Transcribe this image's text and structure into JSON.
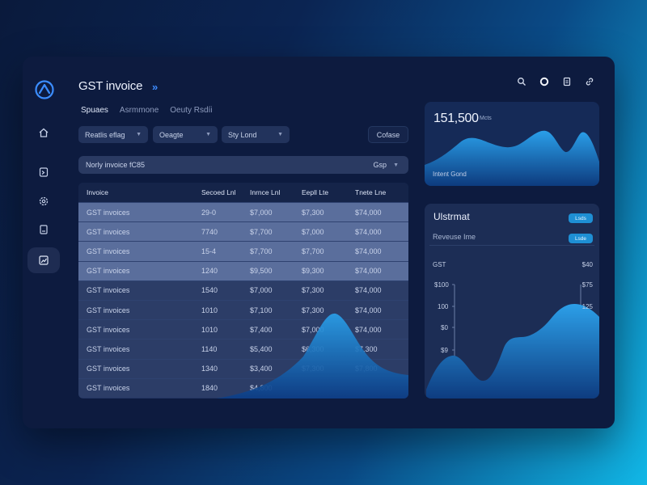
{
  "app": {
    "title": "GST invoice",
    "title_arrows": "»"
  },
  "tabs": [
    {
      "label": "Spuaes",
      "active": true
    },
    {
      "label": "Asrmmone",
      "active": false
    },
    {
      "label": "Oeuty Rsdíi",
      "active": false
    }
  ],
  "filters": [
    {
      "label": "Reatlis eflag"
    },
    {
      "label": "Oeagte"
    },
    {
      "label": "Sty Lond"
    }
  ],
  "create_button": "Cofase",
  "search": {
    "text": "Norly invoice fC85",
    "select_label": "Gsp"
  },
  "table": {
    "columns": [
      "Invoice",
      "Secoed Lnl",
      "Inrnce Lnl",
      "Eepll Lte",
      "Tnete Lne"
    ],
    "rows": [
      [
        "GST invoices",
        "29-0",
        "$7,000",
        "$7,300",
        "$74,000"
      ],
      [
        "GST invoices",
        "7740",
        "$7,700",
        "$7,000",
        "$74,000"
      ],
      [
        "GST invoices",
        "15-4",
        "$7,700",
        "$7,700",
        "$74,000"
      ],
      [
        "GST invoices",
        "1240",
        "$9,500",
        "$9,300",
        "$74,000"
      ],
      [
        "GST invoices",
        "1540",
        "$7,000",
        "$7,300",
        "$74,000"
      ],
      [
        "GST invoices",
        "1010",
        "$7,100",
        "$7,300",
        "$74,000"
      ],
      [
        "GST invoices",
        "1010",
        "$7,400",
        "$7,000",
        "$74,000"
      ],
      [
        "GST invoices",
        "1140",
        "$5,400",
        "$6,300",
        "$7,300"
      ],
      [
        "GST invoices",
        "1340",
        "$3,400",
        "$7,300",
        "$7,800"
      ],
      [
        "GST invoices",
        "1840",
        "$4,800",
        "",
        ""
      ]
    ]
  },
  "metric_card": {
    "value": "151,500",
    "unit": "Mcts",
    "footer": "Intent Gond"
  },
  "line_card": {
    "title": "Ulstrmat",
    "pill1": "Lsds",
    "pill2": "Lsde",
    "subtitle": "Reveuse Ime",
    "series_label": "GST",
    "series_value": "$40",
    "y_labels": [
      "$100",
      "100",
      "$0",
      "$9"
    ],
    "right_labels": [
      "$75",
      "125"
    ]
  },
  "colors": {
    "accent": "#1e8fd4",
    "background": "#0d1b3f",
    "wave": "#1f8fd6"
  }
}
